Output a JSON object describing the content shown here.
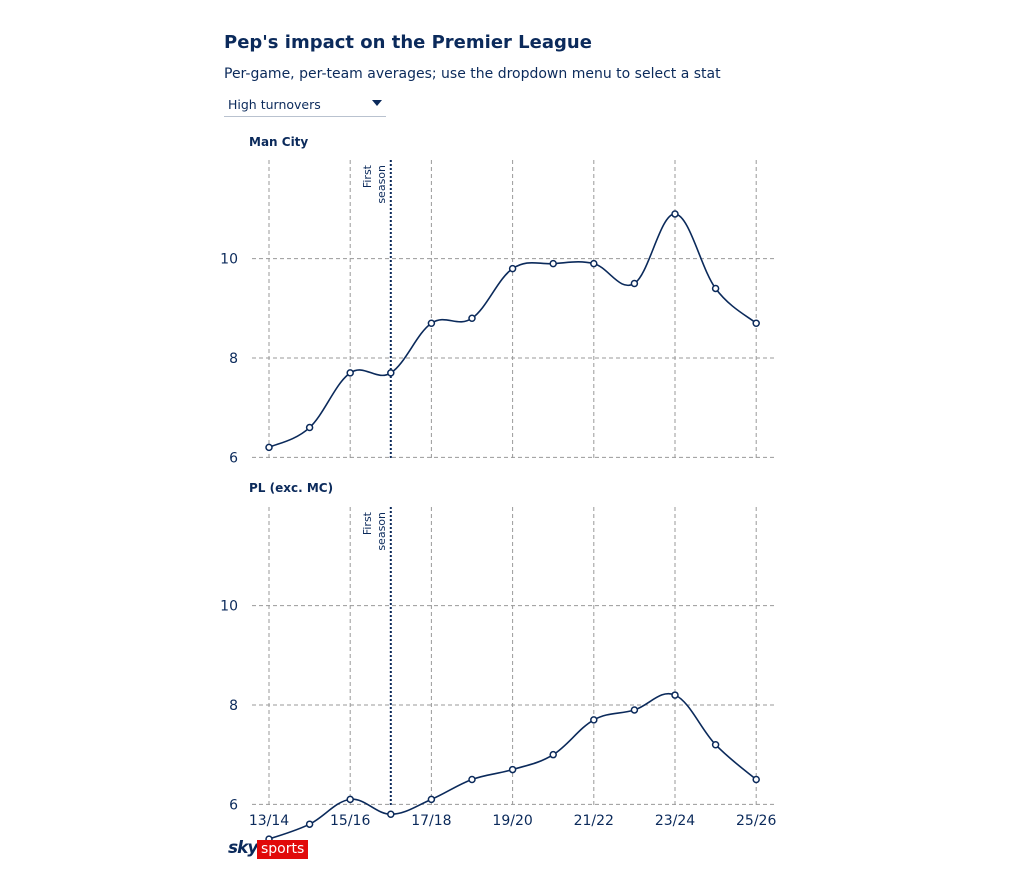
{
  "header": {
    "title": "Pep's impact on the Premier League",
    "subtitle": "Per-game, per-team averages; use the dropdown menu to select a stat",
    "dropdown_value": "High turnovers"
  },
  "annotation_text": [
    "First",
    "season"
  ],
  "logo": {
    "sky": "sky",
    "sports": "sports"
  },
  "colors": {
    "line": "#0b2a5b",
    "grid": "#9a9a9a",
    "logo_red": "#e10a0a"
  },
  "chart_data": [
    {
      "type": "line",
      "panel_label": "Man City",
      "x": [
        "13/14",
        "14/15",
        "15/16",
        "16/17",
        "17/18",
        "18/19",
        "19/20",
        "20/21",
        "21/22",
        "22/23",
        "23/24",
        "24/25",
        "25/26"
      ],
      "values": [
        6.2,
        6.6,
        7.7,
        7.7,
        8.7,
        8.8,
        9.8,
        9.9,
        9.9,
        9.5,
        10.9,
        9.4,
        8.7
      ],
      "xticks": [
        "13/14",
        "15/16",
        "17/18",
        "19/20",
        "21/22",
        "23/24",
        "25/26"
      ],
      "yticks": [
        6,
        8,
        10
      ],
      "ylim": [
        5,
        11
      ],
      "annotation_x": "16/17",
      "grid": true
    },
    {
      "type": "line",
      "panel_label": "PL (exc. MC)",
      "x": [
        "13/14",
        "14/15",
        "15/16",
        "16/17",
        "17/18",
        "18/19",
        "19/20",
        "20/21",
        "21/22",
        "22/23",
        "23/24",
        "24/25",
        "25/26"
      ],
      "values": [
        5.3,
        5.6,
        6.1,
        5.8,
        6.1,
        6.5,
        6.7,
        7.0,
        7.7,
        7.9,
        8.2,
        7.2,
        6.5
      ],
      "xticks": [
        "13/14",
        "15/16",
        "17/18",
        "19/20",
        "21/22",
        "23/24",
        "25/26"
      ],
      "yticks": [
        6,
        8,
        10
      ],
      "ylim": [
        5,
        11
      ],
      "annotation_x": "16/17",
      "grid": true
    }
  ]
}
